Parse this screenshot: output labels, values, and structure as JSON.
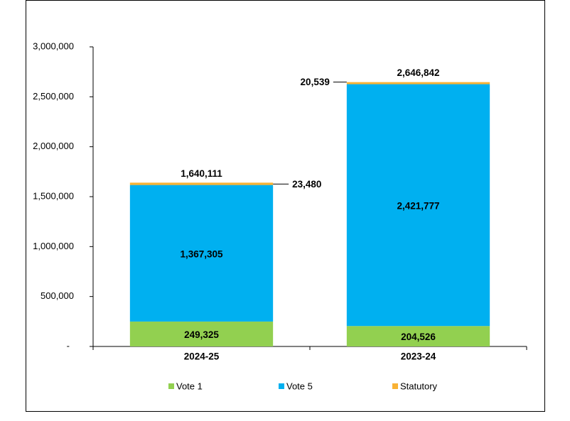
{
  "chart_data": {
    "type": "stacked-bar",
    "categories": [
      "2024-25",
      "2023-24"
    ],
    "series": [
      {
        "name": "Vote 1",
        "color": "#92d050",
        "values": [
          249325,
          204526
        ],
        "value_labels": [
          "249,325",
          "204,526"
        ]
      },
      {
        "name": "Vote 5",
        "color": "#00b0f0",
        "values": [
          1367305,
          2421777
        ],
        "value_labels": [
          "1,367,305",
          "2,421,777"
        ]
      },
      {
        "name": "Statutory",
        "color": "#f9b234",
        "values": [
          23480,
          20539
        ],
        "value_labels": [
          "23,480",
          "20,539"
        ]
      }
    ],
    "totals": {
      "values": [
        1640111,
        2646842
      ],
      "value_labels": [
        "1,640,111",
        "2,646,842"
      ]
    },
    "ylim": [
      0,
      3000000
    ],
    "yticks": [
      {
        "value": 0,
        "label": "-"
      },
      {
        "value": 500000,
        "label": "500,000"
      },
      {
        "value": 1000000,
        "label": "1,000,000"
      },
      {
        "value": 1500000,
        "label": "1,500,000"
      },
      {
        "value": 2000000,
        "label": "2,000,000"
      },
      {
        "value": 2500000,
        "label": "2,500,000"
      },
      {
        "value": 3000000,
        "label": "3,000,000"
      }
    ],
    "legend": "bottom"
  }
}
